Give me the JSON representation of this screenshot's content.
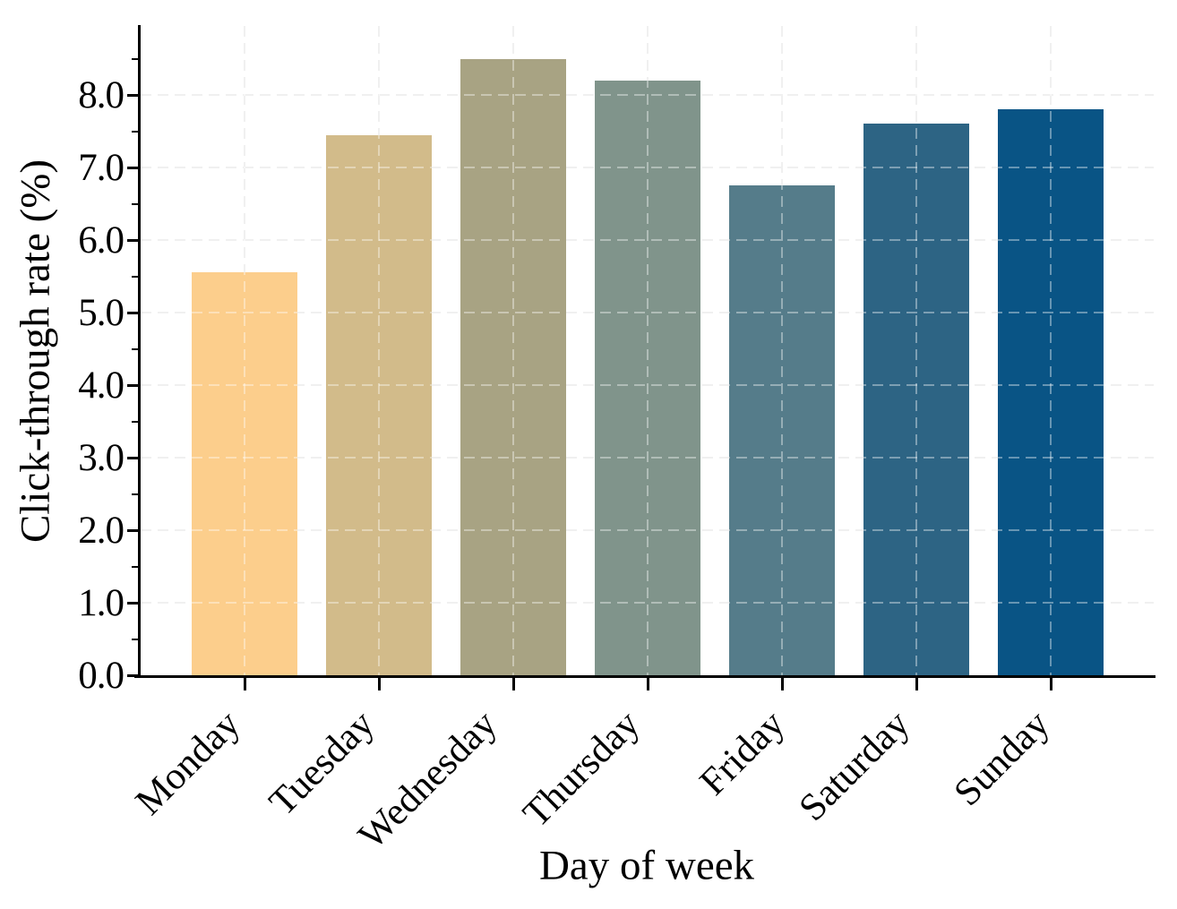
{
  "figure": {
    "background": "#ffffff",
    "text_color": "#000000",
    "gridline_color": "#e7e7e7"
  },
  "chart_data": {
    "type": "bar",
    "title": "",
    "xlabel": "Day of week",
    "ylabel": "Click-through rate (%)",
    "categories": [
      "Monday",
      "Tuesday",
      "Wednesday",
      "Thursday",
      "Friday",
      "Saturday",
      "Sunday"
    ],
    "values": [
      5.55,
      7.45,
      8.5,
      8.2,
      6.75,
      7.6,
      7.8
    ],
    "bar_colors": [
      "#fcce8c",
      "#d2bb8a",
      "#a8a383",
      "#80948b",
      "#557c8a",
      "#2d6484",
      "#095485"
    ],
    "ylim": [
      0.0,
      8.95
    ],
    "yticks": [
      0.0,
      1.0,
      2.0,
      3.0,
      4.0,
      5.0,
      6.0,
      7.0,
      8.0
    ],
    "ytick_labels": [
      "0.0",
      "1.0",
      "2.0",
      "3.0",
      "4.0",
      "5.0",
      "6.0",
      "7.0",
      "8.0"
    ],
    "minor_ytick_step": 0.5,
    "grid": {
      "x": true,
      "y": true,
      "style": "dashed",
      "layer": "over-bars"
    },
    "legend_position": "none"
  }
}
